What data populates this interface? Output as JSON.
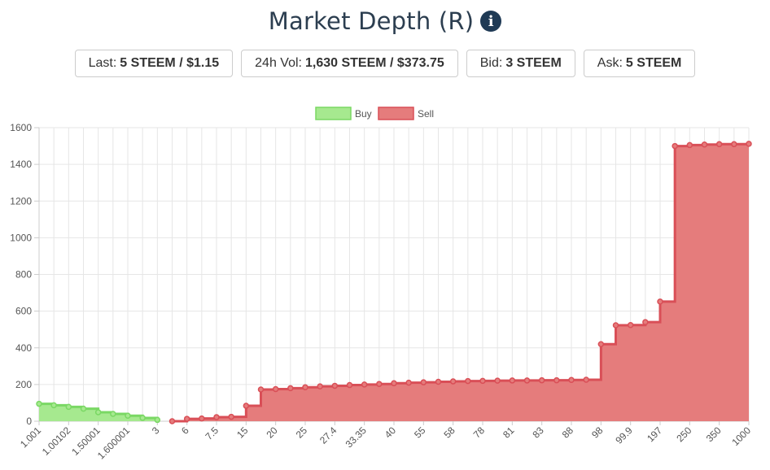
{
  "header": {
    "title": "Market Depth (R)",
    "info_icon": "i"
  },
  "stats": [
    {
      "label": "Last:",
      "value": "5 STEEM / $1.15"
    },
    {
      "label": "24h Vol:",
      "value": "1,630 STEEM / $373.75"
    },
    {
      "label": "Bid:",
      "value": "3 STEEM"
    },
    {
      "label": "Ask:",
      "value": "5 STEEM"
    }
  ],
  "colors": {
    "buy_fill": "#a6e98f",
    "buy_line": "#7ad864",
    "sell_fill": "#e57c7c",
    "sell_line": "#d94f57",
    "grid": "#e6e6e6"
  },
  "chart_data": {
    "type": "area",
    "title": "",
    "xlabel": "",
    "ylabel": "",
    "ylim": [
      0,
      1600
    ],
    "y_ticks": [
      "0",
      "200",
      "400",
      "600",
      "800",
      "1000",
      "1200",
      "1400",
      "1600"
    ],
    "x_tick_labels": [
      "1.001",
      "1.00102",
      "1.50001",
      "1.600001",
      "3",
      "6",
      "7.5",
      "15",
      "20",
      "25",
      "27.4",
      "33.35",
      "40",
      "55",
      "58",
      "78",
      "81",
      "83",
      "88",
      "98",
      "99.9",
      "197",
      "250",
      "350",
      "1000"
    ],
    "legend": {
      "position": "top-center",
      "entries": [
        "Buy",
        "Sell"
      ]
    },
    "grid": true,
    "series": [
      {
        "name": "Buy",
        "stepped": true,
        "values": [
          95,
          87,
          78,
          68,
          49,
          40,
          30,
          18,
          7
        ]
      },
      {
        "name": "Sell",
        "stepped": true,
        "values": [
          0,
          13,
          15,
          22,
          24,
          84,
          173,
          175,
          180,
          185,
          190,
          193,
          197,
          200,
          203,
          207,
          210,
          212,
          215,
          217,
          219,
          220,
          221,
          222,
          222,
          223,
          223,
          225,
          226,
          420,
          523,
          524,
          540,
          652,
          1500,
          1505,
          1508,
          1510,
          1510,
          1512
        ]
      }
    ]
  }
}
